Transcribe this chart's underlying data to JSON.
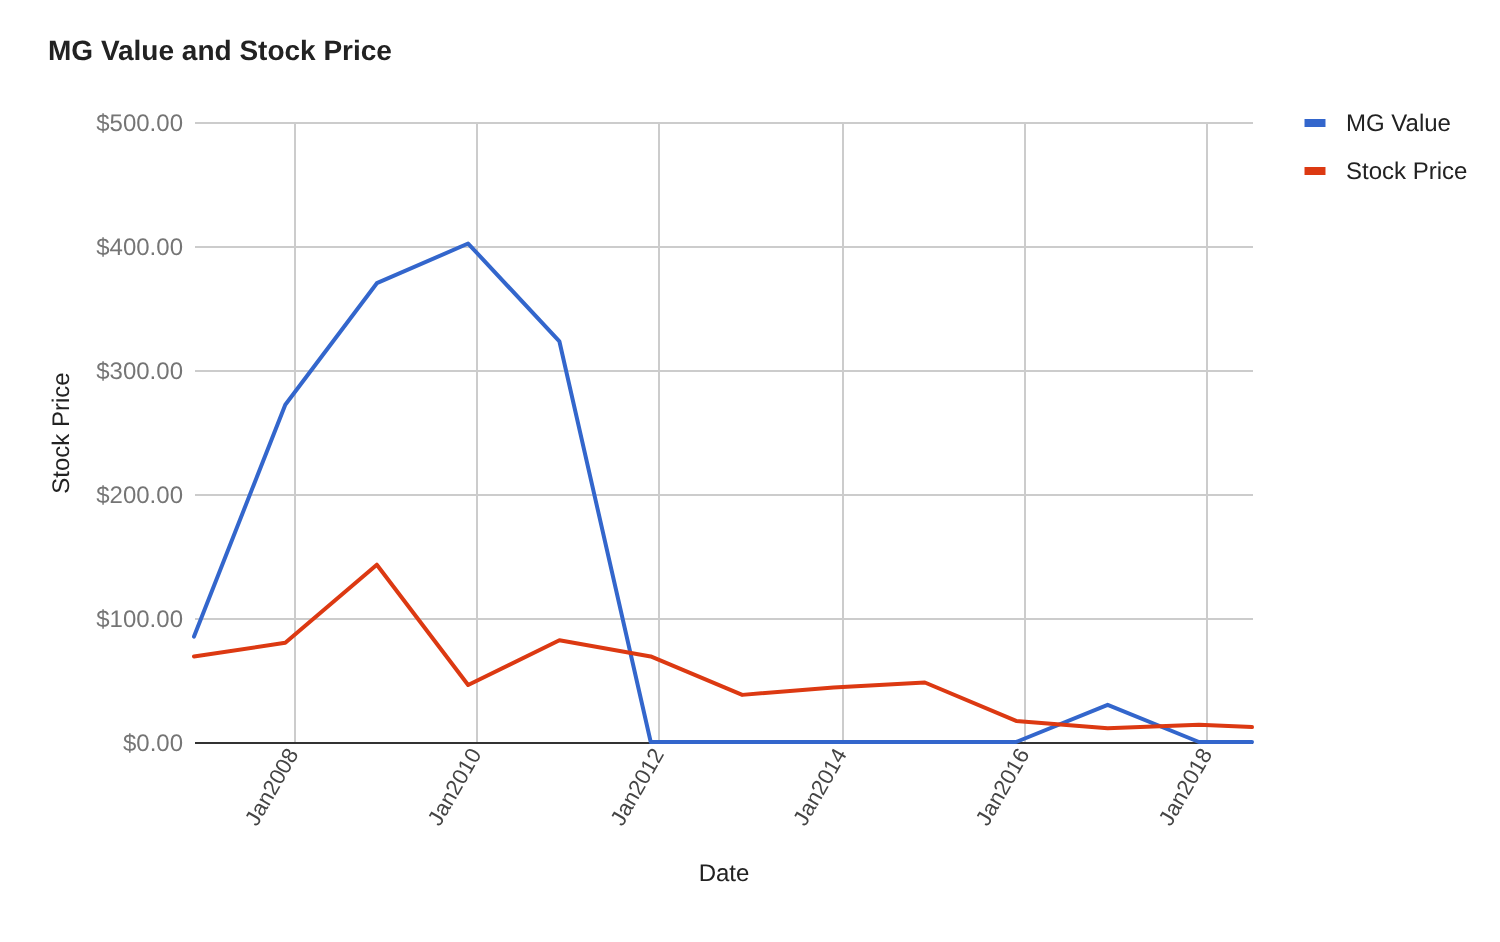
{
  "chart_data": {
    "type": "line",
    "title": "MG Value and Stock Price",
    "xlabel": "Date",
    "ylabel": "Stock Price",
    "x": [
      "2006-12",
      "2007-12",
      "2008-12",
      "2009-12",
      "2010-12",
      "2011-12",
      "2012-12",
      "2013-12",
      "2014-12",
      "2015-12",
      "2016-12",
      "2017-12",
      "2018-07"
    ],
    "series": [
      {
        "name": "MG Value",
        "color": "#3366cc",
        "values": [
          85,
          272,
          370,
          402,
          323,
          0,
          0,
          0,
          0,
          0,
          30,
          0,
          0
        ]
      },
      {
        "name": "Stock Price",
        "color": "#dc3912",
        "values": [
          69,
          80,
          143,
          46,
          82,
          69,
          38,
          44,
          48,
          17,
          11,
          14,
          12
        ]
      }
    ],
    "xlim": [
      "2006-12",
      "2018-07"
    ],
    "xticks": [
      {
        "value": "2008-01",
        "label": "Jan2008"
      },
      {
        "value": "2010-01",
        "label": "Jan2010"
      },
      {
        "value": "2012-01",
        "label": "Jan2012"
      },
      {
        "value": "2014-01",
        "label": "Jan2014"
      },
      {
        "value": "2016-01",
        "label": "Jan2016"
      },
      {
        "value": "2018-01",
        "label": "Jan2018"
      }
    ],
    "ylim": [
      0,
      500
    ],
    "yticks": [
      {
        "value": 0,
        "label": "$0.00"
      },
      {
        "value": 100,
        "label": "$100.00"
      },
      {
        "value": 200,
        "label": "$200.00"
      },
      {
        "value": 300,
        "label": "$300.00"
      },
      {
        "value": 400,
        "label": "$400.00"
      },
      {
        "value": 500,
        "label": "$500.00"
      }
    ],
    "grid": true,
    "legend": "right"
  }
}
